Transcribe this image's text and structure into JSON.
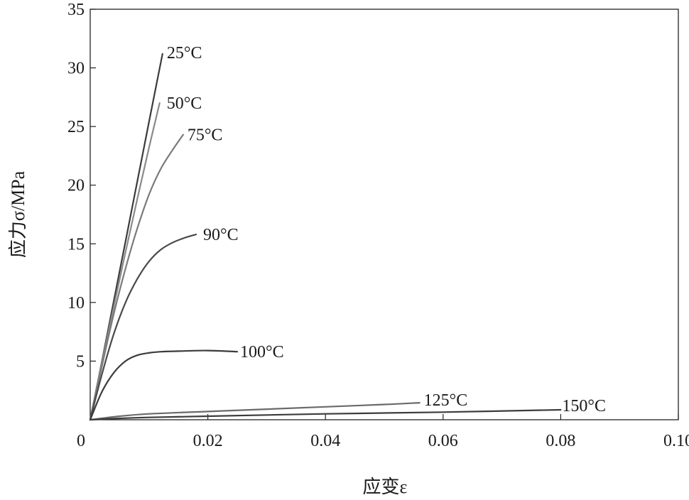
{
  "chart_data": {
    "type": "line",
    "xlabel": "应变ε",
    "ylabel": "应力σ/MPa",
    "xlim": [
      0,
      0.1
    ],
    "ylim": [
      0,
      35
    ],
    "x_ticks": [
      "0",
      "0.02",
      "0.04",
      "0.06",
      "0.08",
      "0.10"
    ],
    "x_tick_values": [
      0,
      0.02,
      0.04,
      0.06,
      0.08,
      0.1
    ],
    "y_ticks": [
      "5",
      "10",
      "15",
      "20",
      "25",
      "30",
      "35"
    ],
    "y_tick_values": [
      5,
      10,
      15,
      20,
      25,
      30,
      35
    ],
    "grid": false,
    "legend": "inline labels at curve ends",
    "series": [
      {
        "name": "25°C",
        "color": "#3c3c3c",
        "x": [
          0,
          0.002,
          0.004,
          0.006,
          0.008,
          0.01,
          0.0123
        ],
        "y": [
          0,
          5.0,
          10.1,
          15.2,
          20.3,
          25.4,
          31.2
        ]
      },
      {
        "name": "50°C",
        "color": "#8a8a8a",
        "x": [
          0,
          0.002,
          0.004,
          0.006,
          0.008,
          0.01,
          0.0118
        ],
        "y": [
          0,
          4.9,
          9.6,
          14.3,
          18.8,
          23.2,
          27.0
        ]
      },
      {
        "name": "75°C",
        "color": "#7a7a7a",
        "x": [
          0,
          0.002,
          0.004,
          0.006,
          0.008,
          0.01,
          0.012,
          0.014,
          0.0158
        ],
        "y": [
          0,
          4.6,
          9.0,
          12.9,
          16.3,
          19.2,
          21.4,
          23.0,
          24.3
        ]
      },
      {
        "name": "90°C",
        "color": "#4a4a4a",
        "x": [
          0,
          0.002,
          0.004,
          0.006,
          0.008,
          0.01,
          0.012,
          0.014,
          0.016,
          0.018
        ],
        "y": [
          0,
          3.9,
          7.3,
          10.0,
          12.0,
          13.5,
          14.5,
          15.1,
          15.5,
          15.8
        ]
      },
      {
        "name": "100°C",
        "color": "#3c3c3c",
        "x": [
          0,
          0.002,
          0.004,
          0.006,
          0.008,
          0.01,
          0.012,
          0.015,
          0.02,
          0.025
        ],
        "y": [
          0,
          2.4,
          4.0,
          5.0,
          5.5,
          5.7,
          5.8,
          5.85,
          5.9,
          5.8
        ]
      },
      {
        "name": "125°C",
        "color": "#6a6a6a",
        "x": [
          0,
          0.005,
          0.01,
          0.02,
          0.03,
          0.04,
          0.05,
          0.056
        ],
        "y": [
          0,
          0.3,
          0.5,
          0.7,
          0.9,
          1.1,
          1.3,
          1.45
        ]
      },
      {
        "name": "150°C",
        "color": "#3c3c3c",
        "x": [
          0,
          0.005,
          0.01,
          0.02,
          0.04,
          0.06,
          0.08
        ],
        "y": [
          0,
          0.12,
          0.2,
          0.3,
          0.5,
          0.65,
          0.85
        ]
      }
    ]
  }
}
